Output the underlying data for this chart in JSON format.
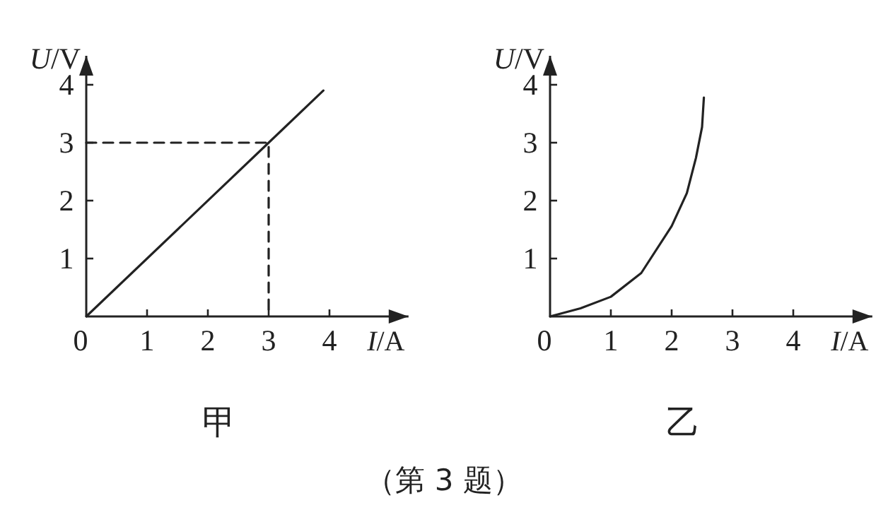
{
  "chart_data": [
    {
      "type": "line",
      "title": "甲",
      "xlabel": "*I*/A",
      "ylabel": "*U*/V",
      "xlim": [
        0,
        5.3
      ],
      "ylim": [
        0,
        4.5
      ],
      "xticks": [
        0,
        1,
        2,
        3,
        4
      ],
      "yticks": [
        1,
        2,
        3,
        4
      ],
      "grid": false,
      "line_style": "solid",
      "series": [
        {
          "color": "#222222",
          "x": [
            0,
            3,
            3.9
          ],
          "values": [
            0,
            3,
            3.9
          ]
        },
        {
          "color": "#222222",
          "line_style": "dashed",
          "x": [
            0,
            3,
            3
          ],
          "values": [
            3,
            3,
            0
          ]
        }
      ],
      "annotations": [
        "（第 3 题）"
      ]
    },
    {
      "type": "line",
      "title": "乙",
      "xlabel": "*I*/A",
      "ylabel": "*U*/V",
      "xlim": [
        0,
        5.3
      ],
      "ylim": [
        0,
        4.5
      ],
      "xticks": [
        0,
        1,
        2,
        3,
        4
      ],
      "yticks": [
        1,
        2,
        3,
        4
      ],
      "grid": false,
      "line_style": "solid",
      "series": [
        {
          "color": "#222222",
          "x": [
            0,
            0.5,
            1,
            1.5,
            2,
            2.25,
            2.4,
            2.5,
            2.53
          ],
          "values": [
            0,
            0.14,
            0.34,
            0.75,
            1.56,
            2.13,
            2.74,
            3.27,
            3.78
          ]
        }
      ]
    }
  ]
}
